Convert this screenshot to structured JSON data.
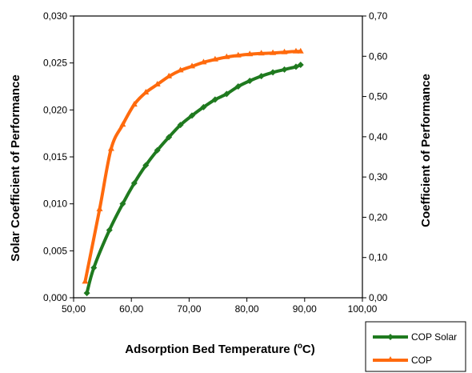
{
  "chart_data": {
    "type": "line",
    "xlabel": "Adsorption Bed Temperature (",
    "xlabel_sup": "o",
    "xlabel_suffix": "C)",
    "ylabel_left": "Solar Coefficient of Performance",
    "ylabel_right": "Coefficient of Performance",
    "xlim": [
      50,
      100
    ],
    "ylim_left": [
      0,
      0.03
    ],
    "ylim_right": [
      0,
      0.7
    ],
    "x_ticks": [
      "50,00",
      "60,00",
      "70,00",
      "80,00",
      "90,00",
      "100,00"
    ],
    "y_left_ticks": [
      "0,000",
      "0,005",
      "0,010",
      "0,015",
      "0,020",
      "0,025",
      "0,030"
    ],
    "y_right_ticks": [
      "0,00",
      "0,10",
      "0,20",
      "0,30",
      "0,40",
      "0,50",
      "0,60",
      "0,70"
    ],
    "grid": false,
    "legend_position": "bottom-right",
    "series": [
      {
        "name": "COP Solar",
        "axis": "left",
        "color": "#1f7a1f",
        "marker": "diamond",
        "x": [
          52.3,
          53.5,
          56.2,
          58.5,
          60.5,
          62.5,
          64.5,
          66.5,
          68.5,
          70.5,
          72.5,
          74.5,
          76.5,
          78.5,
          80.5,
          82.5,
          84.5,
          86.5,
          88.5,
          89.3
        ],
        "y": [
          0.0005,
          0.0032,
          0.0072,
          0.01,
          0.0122,
          0.0141,
          0.0157,
          0.0171,
          0.0184,
          0.0194,
          0.0203,
          0.0211,
          0.0217,
          0.0225,
          0.0231,
          0.0236,
          0.024,
          0.0243,
          0.0246,
          0.0248
        ]
      },
      {
        "name": "COP",
        "axis": "right",
        "color": "#ff6a0d",
        "marker": "triangle",
        "x": [
          52.0,
          54.5,
          56.5,
          58.5,
          60.5,
          62.5,
          64.5,
          66.5,
          68.5,
          70.5,
          72.5,
          74.5,
          76.5,
          78.5,
          80.5,
          82.5,
          84.5,
          86.5,
          88.5,
          89.3
        ],
        "y": [
          0.04,
          0.22,
          0.37,
          0.43,
          0.48,
          0.51,
          0.53,
          0.55,
          0.565,
          0.575,
          0.585,
          0.592,
          0.598,
          0.602,
          0.605,
          0.607,
          0.608,
          0.61,
          0.612,
          0.612
        ]
      }
    ]
  },
  "legend": {
    "items": [
      {
        "label": "COP Solar",
        "color": "#1f7a1f",
        "marker": "diamond"
      },
      {
        "label": "COP",
        "color": "#ff6a0d",
        "marker": "triangle"
      }
    ]
  }
}
